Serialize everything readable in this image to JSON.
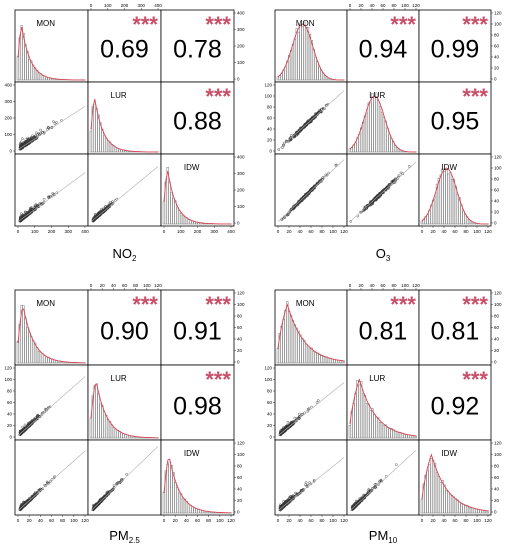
{
  "chart_data": [
    {
      "type": "scatter-matrix",
      "title": "NO2",
      "variables": [
        "MON",
        "LUR",
        "IDW"
      ],
      "axis_ticks": [
        "0",
        "100",
        "200",
        "300",
        "400"
      ],
      "axis_range": [
        0,
        400
      ],
      "correlations": [
        {
          "pair": [
            "MON",
            "LUR"
          ],
          "r": "0.69",
          "significance": "***"
        },
        {
          "pair": [
            "MON",
            "IDW"
          ],
          "r": "0.78",
          "significance": "***"
        },
        {
          "pair": [
            "LUR",
            "IDW"
          ],
          "r": "0.88",
          "significance": "***"
        }
      ],
      "distribution": "right-skewed",
      "histogram_mode": 25
    },
    {
      "type": "scatter-matrix",
      "title": "O3",
      "variables": [
        "MON",
        "LUR",
        "IDW"
      ],
      "axis_ticks": [
        "0",
        "20",
        "40",
        "60",
        "80",
        "100",
        "120"
      ],
      "axis_range": [
        0,
        120
      ],
      "correlations": [
        {
          "pair": [
            "MON",
            "LUR"
          ],
          "r": "0.94",
          "significance": "***"
        },
        {
          "pair": [
            "MON",
            "IDW"
          ],
          "r": "0.99",
          "significance": "***"
        },
        {
          "pair": [
            "LUR",
            "IDW"
          ],
          "r": "0.95",
          "significance": "***"
        }
      ],
      "distribution": "bell-shaped",
      "histogram_mode": 45
    },
    {
      "type": "scatter-matrix",
      "title": "PM2.5",
      "variables": [
        "MON",
        "LUR",
        "IDW"
      ],
      "axis_ticks": [
        "0",
        "20",
        "40",
        "60",
        "80",
        "100",
        "120"
      ],
      "axis_range": [
        0,
        120
      ],
      "correlations": [
        {
          "pair": [
            "MON",
            "LUR"
          ],
          "r": "0.90",
          "significance": "***"
        },
        {
          "pair": [
            "MON",
            "IDW"
          ],
          "r": "0.91",
          "significance": "***"
        },
        {
          "pair": [
            "LUR",
            "IDW"
          ],
          "r": "0.98",
          "significance": "***"
        }
      ],
      "distribution": "right-skewed",
      "histogram_mode": 10
    },
    {
      "type": "scatter-matrix",
      "title": "PM10",
      "variables": [
        "MON",
        "LUR",
        "IDW"
      ],
      "axis_ticks": [
        "0",
        "20",
        "40",
        "60",
        "80",
        "100",
        "120"
      ],
      "axis_range": [
        0,
        120
      ],
      "correlations": [
        {
          "pair": [
            "MON",
            "LUR"
          ],
          "r": "0.81",
          "significance": "***"
        },
        {
          "pair": [
            "MON",
            "IDW"
          ],
          "r": "0.81",
          "significance": "***"
        },
        {
          "pair": [
            "LUR",
            "IDW"
          ],
          "r": "0.92",
          "significance": "***"
        }
      ],
      "distribution": "right-skewed",
      "histogram_mode": 18
    }
  ],
  "colors": {
    "stars": "#c8506a",
    "density_line": "#d9485a",
    "fit_line": "#b0b0b0",
    "points": "#333333",
    "bars": "#777777"
  }
}
